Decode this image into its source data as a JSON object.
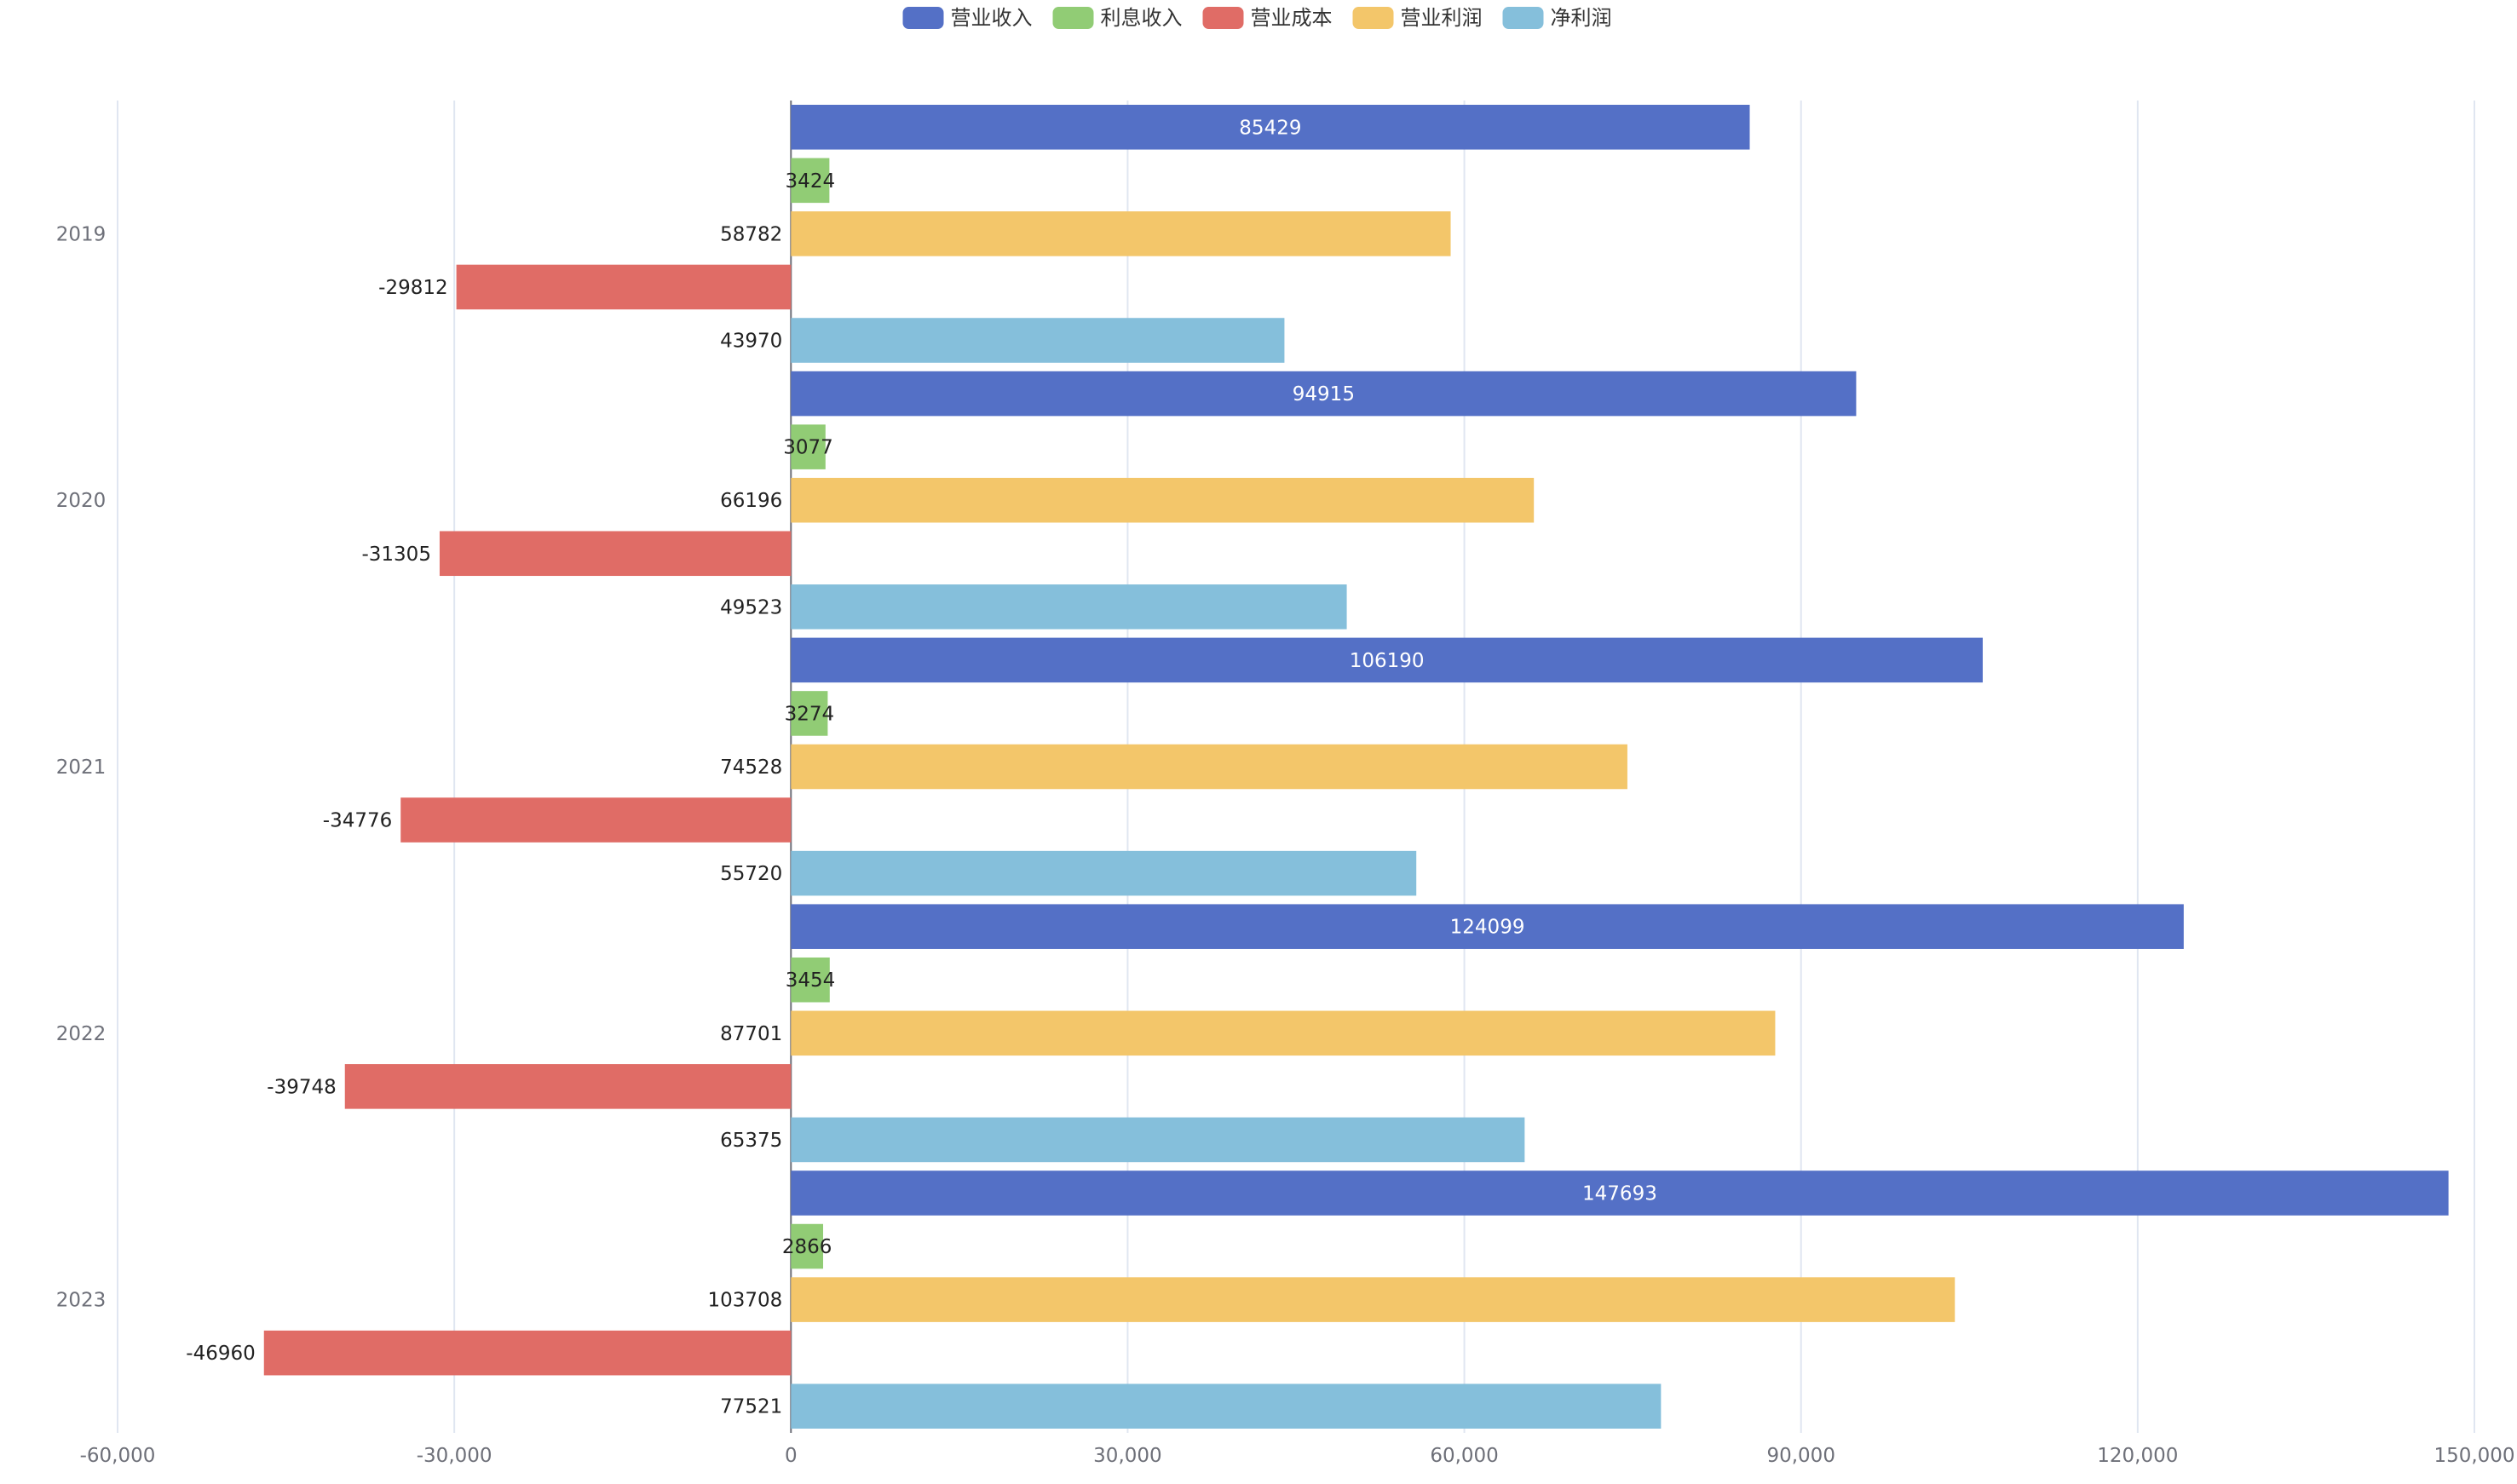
{
  "chart_data": {
    "type": "bar",
    "orientation": "horizontal",
    "categories": [
      "2019",
      "2020",
      "2021",
      "2022",
      "2023"
    ],
    "series": [
      {
        "name": "营业收入",
        "color": "#5470c6",
        "label_position": "inside",
        "values": [
          85429,
          94915,
          106190,
          124099,
          147693
        ]
      },
      {
        "name": "利息收入",
        "color": "#91cc75",
        "label_position": "inside",
        "values": [
          3424,
          3077,
          3274,
          3454,
          2866
        ]
      },
      {
        "name": "营业利润",
        "color": "#f3c66a",
        "label_position": "left",
        "values": [
          58782,
          66196,
          74528,
          87701,
          103708
        ]
      },
      {
        "name": "营业成本",
        "color": "#e06c66",
        "label_position": "left",
        "values": [
          -29812,
          -31305,
          -34776,
          -39748,
          -46960
        ]
      },
      {
        "name": "净利润",
        "color": "#85bfdb",
        "label_position": "left",
        "values": [
          43970,
          49523,
          55720,
          65375,
          77521
        ]
      }
    ],
    "legend": {
      "position": "top-center",
      "order": [
        "营业收入",
        "利息收入",
        "营业成本",
        "营业利润",
        "净利润"
      ]
    },
    "x_axis": {
      "min": -60000,
      "max": 150000,
      "ticks": [
        -60000,
        -30000,
        0,
        30000,
        60000,
        90000,
        120000,
        150000
      ],
      "tick_labels": [
        "-60,000",
        "-30,000",
        "0",
        "30,000",
        "60,000",
        "90,000",
        "120,000",
        "150,000"
      ],
      "grid": true
    },
    "y_axis": {
      "labels": [
        "2019",
        "2020",
        "2021",
        "2022",
        "2023"
      ],
      "inverse": true
    },
    "title": "",
    "xlabel": "",
    "ylabel": ""
  }
}
